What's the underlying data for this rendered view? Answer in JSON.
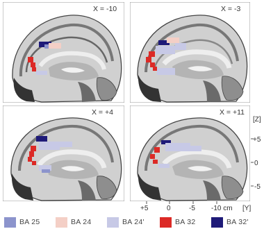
{
  "panels": [
    {
      "label": "X = -10"
    },
    {
      "label": "X = -3"
    },
    {
      "label": "X = +4"
    },
    {
      "label": "X = +11"
    }
  ],
  "z_axis": {
    "label": "[Z]",
    "ticks": [
      "+5",
      "0",
      "-5"
    ]
  },
  "y_axis": {
    "label": "[Y]",
    "ticks": [
      "+5",
      "0",
      "-5",
      "-10 cm"
    ]
  },
  "legend": [
    {
      "label": "BA 25",
      "color": "#8c94cc"
    },
    {
      "label": "BA 24",
      "color": "#f4cfc6"
    },
    {
      "label": "BA 24'",
      "color": "#c7c9e6"
    },
    {
      "label": "BA 32",
      "color": "#dc2a26"
    },
    {
      "label": "BA 32'",
      "color": "#1e1a78"
    }
  ]
}
